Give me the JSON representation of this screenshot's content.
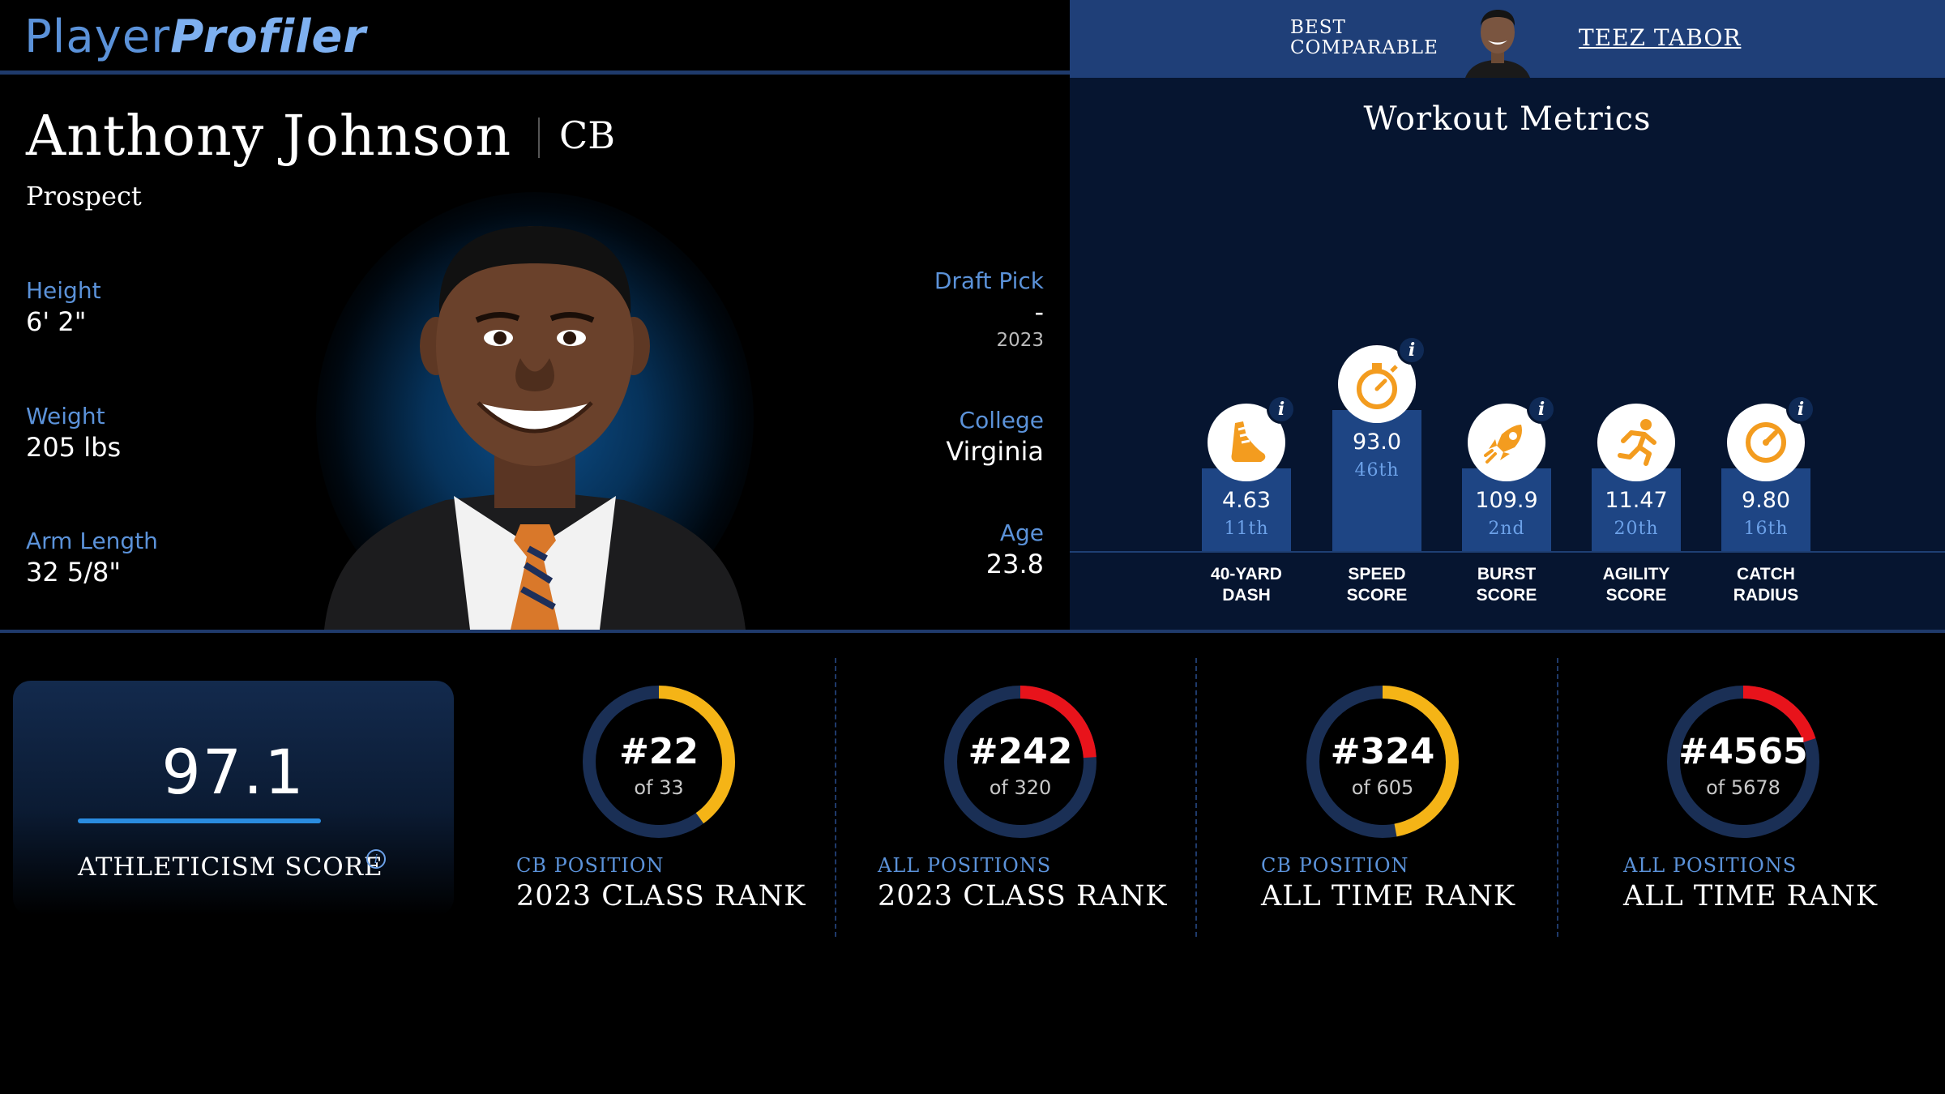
{
  "header": {
    "logo_part1": "Player",
    "logo_part2": "Profiler",
    "best_comparable_line1": "BEST",
    "best_comparable_line2": "COMPARABLE",
    "comparable_name": "TEEZ TABOR"
  },
  "player": {
    "name": "Anthony Johnson",
    "position": "CB",
    "status": "Prospect",
    "height_label": "Height",
    "height": "6' 2\"",
    "weight_label": "Weight",
    "weight": "205 lbs",
    "arm_label": "Arm Length",
    "arm": "32 5/8\"",
    "draft_label": "Draft Pick",
    "draft_pick": "-",
    "draft_year": "2023",
    "college_label": "College",
    "college": "Virginia",
    "age_label": "Age",
    "age": "23.8"
  },
  "workout": {
    "title": "Workout Metrics",
    "info_glyph": "i",
    "metrics": [
      {
        "name1": "40-YARD",
        "name2": "DASH",
        "value": "4.63",
        "rank": "11th",
        "icon": "shoe-icon",
        "percentile": 11
      },
      {
        "name1": "SPEED",
        "name2": "SCORE",
        "value": "93.0",
        "rank": "46th",
        "icon": "stopwatch-icon",
        "percentile": 46
      },
      {
        "name1": "BURST",
        "name2": "SCORE",
        "value": "109.9",
        "rank": "2nd",
        "icon": "rocket-icon",
        "percentile": 2
      },
      {
        "name1": "AGILITY",
        "name2": "SCORE",
        "value": "11.47",
        "rank": "20th",
        "icon": "runner-icon",
        "percentile": 20
      },
      {
        "name1": "CATCH",
        "name2": "RADIUS",
        "value": "9.80",
        "rank": "16th",
        "icon": "gauge-icon",
        "percentile": 16
      }
    ]
  },
  "athleticism": {
    "score": "97.1",
    "label": "ATHLETICISM SCORE",
    "info_glyph": "i"
  },
  "ranks": [
    {
      "rank": "#22",
      "of": "of 33",
      "line1": "CB POSITION",
      "line2": "2023 CLASS RANK",
      "fraction": 0.4,
      "color": "#f5b416"
    },
    {
      "rank": "#242",
      "of": "of 320",
      "line1": "ALL POSITIONS",
      "line2": "2023 CLASS RANK",
      "fraction": 0.24,
      "color": "#e8131b"
    },
    {
      "rank": "#324",
      "of": "of 605",
      "line1": "CB POSITION",
      "line2": "ALL TIME RANK",
      "fraction": 0.47,
      "color": "#f5b416"
    },
    {
      "rank": "#4565",
      "of": "of 5678",
      "line1": "ALL POSITIONS",
      "line2": "ALL TIME RANK",
      "fraction": 0.2,
      "color": "#e8131b"
    }
  ],
  "colors": {
    "accent_blue": "#5b92d9",
    "header_blue": "#1f3f78",
    "panel_navy": "#061530",
    "bar_blue": "#1e4584",
    "icon_orange": "#f39c1f",
    "ring_track": "#1a2f55"
  }
}
